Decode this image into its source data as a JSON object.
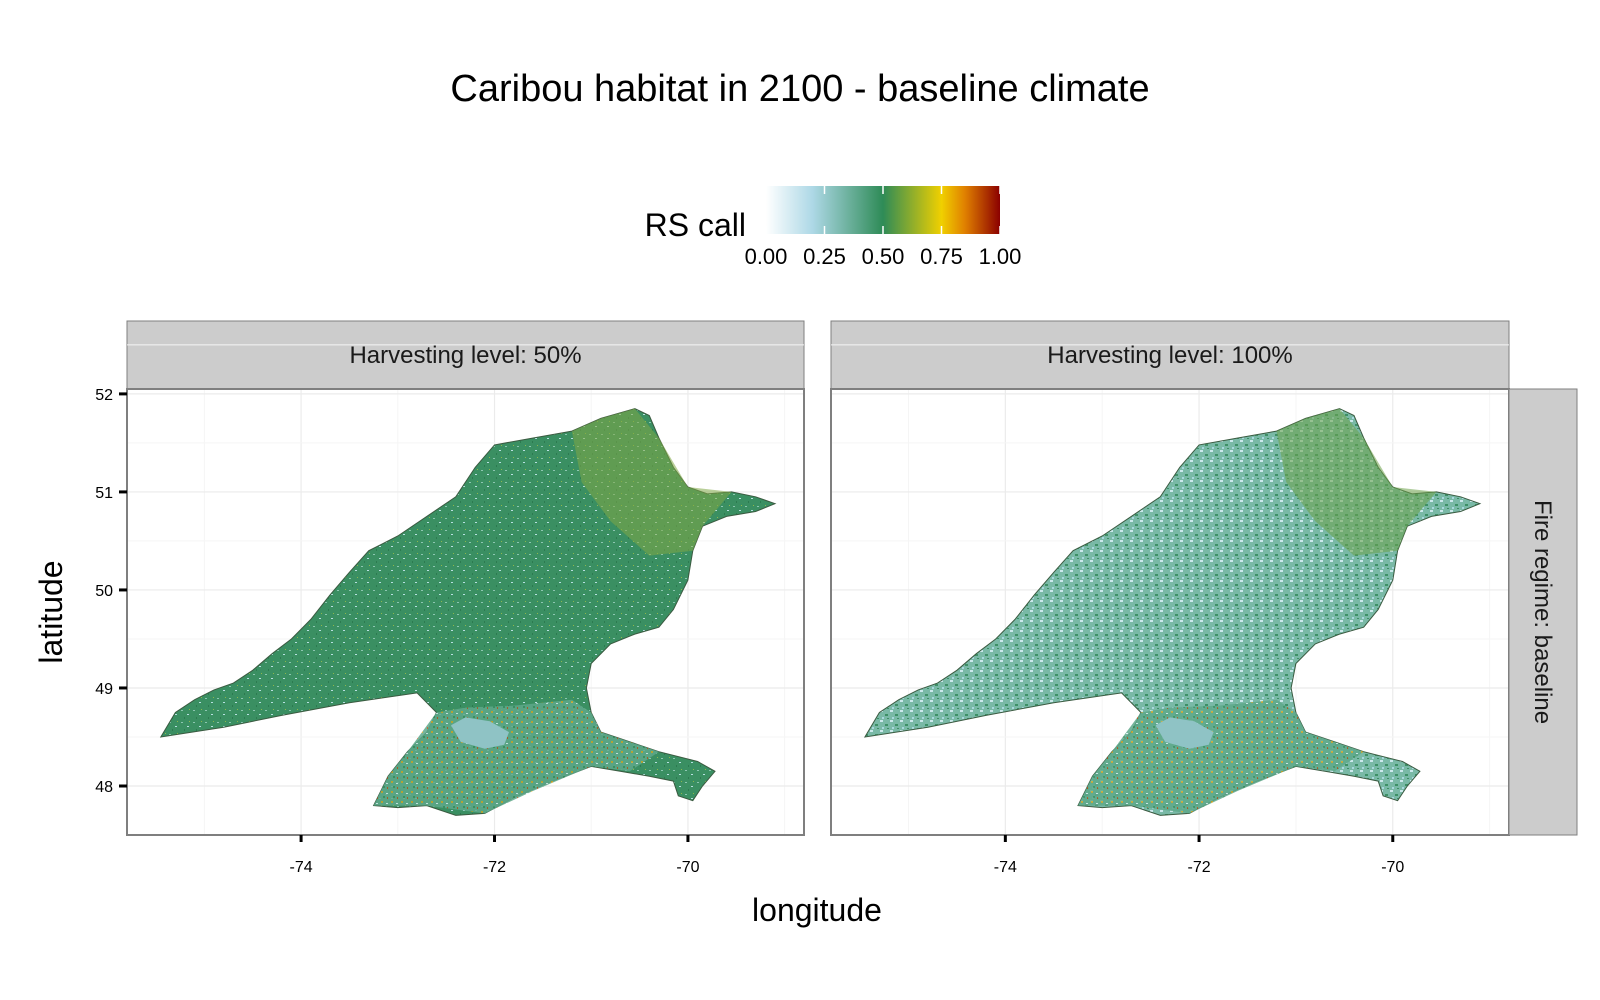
{
  "title": "Caribou habitat in 2100 - baseline climate",
  "legend": {
    "title": "RS call",
    "ticks": [
      "0.00",
      "0.25",
      "0.50",
      "0.75",
      "1.00"
    ],
    "tick_values": [
      0,
      0.25,
      0.5,
      0.75,
      1.0
    ],
    "colors": [
      "#ffffff",
      "#add8e6",
      "#2e8b57",
      "#f0d000",
      "#e08000",
      "#8b0000"
    ]
  },
  "x_axis": {
    "title": "longitude",
    "ticks": [
      "-74",
      "-72",
      "-70"
    ],
    "tick_values": [
      -74,
      -72,
      -70
    ],
    "range": [
      -75.8,
      -68.8
    ]
  },
  "y_axis": {
    "title": "latitude",
    "ticks": [
      "52",
      "51",
      "50",
      "49",
      "48"
    ],
    "tick_values": [
      52,
      51,
      50,
      49,
      48
    ],
    "range": [
      47.5,
      52.05
    ]
  },
  "panels": [
    {
      "strip": "Harvesting level: 50%"
    },
    {
      "strip": "Harvesting level: 100%"
    }
  ],
  "row_strip": "Fire regime: baseline",
  "colors": {
    "strip_bg": "#cccccc",
    "panel_border": "#7f7f7f",
    "grid_major": "#ebebeb",
    "region_green": "#3a8f62",
    "region_light": "#a8d5dc",
    "lake": "#8fc3c5",
    "outline": "#3a5a40"
  }
}
